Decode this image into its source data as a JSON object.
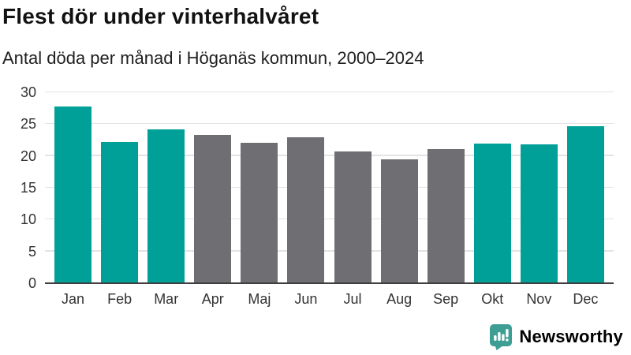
{
  "header": {
    "title": "Flest dör under vinterhalvåret",
    "subtitle": "Antal döda per månad i Höganäs kommun, 2000–2024"
  },
  "colors": {
    "teal": "#00a099",
    "gray": "#6e6e73",
    "grid": "#e3e3e3",
    "axis_line": "#3f3f3f",
    "tick_text": "#333333",
    "title_text": "#121212",
    "logo_teal": "#3f9e94"
  },
  "chart_data": {
    "type": "bar",
    "categories": [
      "Jan",
      "Feb",
      "Mar",
      "Apr",
      "Maj",
      "Jun",
      "Jul",
      "Aug",
      "Sep",
      "Okt",
      "Nov",
      "Dec"
    ],
    "values": [
      27.8,
      22.2,
      24.2,
      23.3,
      22.1,
      22.9,
      20.7,
      19.5,
      21.1,
      22.0,
      21.8,
      24.7
    ],
    "bar_colors": [
      "#00a099",
      "#00a099",
      "#00a099",
      "#6e6e73",
      "#6e6e73",
      "#6e6e73",
      "#6e6e73",
      "#6e6e73",
      "#6e6e73",
      "#00a099",
      "#00a099",
      "#00a099"
    ],
    "title": "Flest dör under vinterhalvåret",
    "subtitle": "Antal döda per månad i Höganäs kommun, 2000–2024",
    "xlabel": "",
    "ylabel": "",
    "ylim": [
      0,
      30
    ],
    "yticks": [
      0,
      5,
      10,
      15,
      20,
      25,
      30
    ],
    "grid": true,
    "legend": false
  },
  "branding": {
    "logo_text": "Newsworthy"
  }
}
